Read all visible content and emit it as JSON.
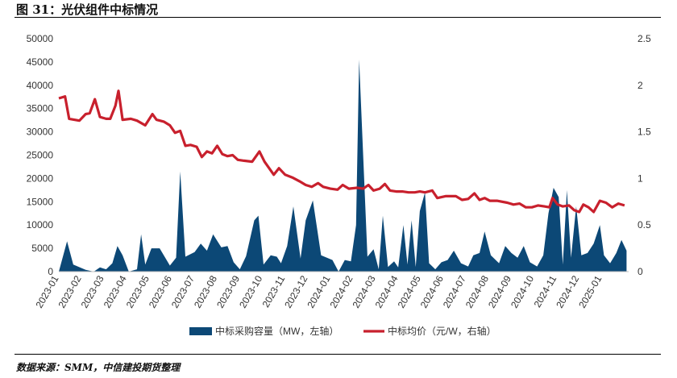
{
  "figure": {
    "title": "图 31：光伏组件中标情况",
    "source": "数据来源：SMM，中信建投期货整理"
  },
  "chart_data": {
    "type": "area+line",
    "title": "",
    "legend_position": "bottom",
    "grid": false,
    "x_ticks": [
      "2023-01",
      "2023-02",
      "2023-03",
      "2023-04",
      "2023-05",
      "2023-06",
      "2023-07",
      "2023-08",
      "2023-09",
      "2023-10",
      "2023-11",
      "2023-12",
      "2024-01",
      "2024-02",
      "2024-03",
      "2024-04",
      "2024-05",
      "2024-06",
      "2024-07",
      "2024-08",
      "2024-09",
      "2024-10",
      "2024-11",
      "2024-12",
      "2025-01"
    ],
    "y_left": {
      "ticks": [
        0,
        5000,
        10000,
        15000,
        20000,
        25000,
        30000,
        35000,
        40000,
        45000,
        50000
      ],
      "lim": [
        0,
        50000
      ]
    },
    "y_right": {
      "ticks": [
        0,
        0.5,
        1,
        1.5,
        2,
        2.5
      ],
      "lim": [
        0,
        2.5
      ]
    },
    "series": [
      {
        "name": "中标采购容量（MW，左轴）",
        "type": "area",
        "axis": "left",
        "color": "#0c4876",
        "points": [
          [
            0,
            0
          ],
          [
            0.4,
            6500
          ],
          [
            0.7,
            1500
          ],
          [
            1.3,
            400
          ],
          [
            1.7,
            0
          ],
          [
            2.0,
            900
          ],
          [
            2.3,
            500
          ],
          [
            2.6,
            1800
          ],
          [
            2.85,
            5500
          ],
          [
            3.1,
            3500
          ],
          [
            3.4,
            0
          ],
          [
            3.8,
            500
          ],
          [
            4.0,
            8000
          ],
          [
            4.2,
            1500
          ],
          [
            4.5,
            5000
          ],
          [
            4.9,
            5000
          ],
          [
            5.4,
            1300
          ],
          [
            5.7,
            3000
          ],
          [
            5.9,
            21500
          ],
          [
            6.15,
            3200
          ],
          [
            6.6,
            4200
          ],
          [
            6.9,
            6000
          ],
          [
            7.2,
            4500
          ],
          [
            7.5,
            8000
          ],
          [
            7.9,
            5200
          ],
          [
            8.2,
            5500
          ],
          [
            8.5,
            2000
          ],
          [
            8.8,
            500
          ],
          [
            9.1,
            3300
          ],
          [
            9.5,
            11000
          ],
          [
            9.7,
            12000
          ],
          [
            9.95,
            1500
          ],
          [
            10.3,
            3500
          ],
          [
            10.6,
            3200
          ],
          [
            10.8,
            1800
          ],
          [
            11.1,
            5500
          ],
          [
            11.4,
            14000
          ],
          [
            11.75,
            2800
          ],
          [
            12.0,
            11000
          ],
          [
            12.35,
            15300
          ],
          [
            12.75,
            3500
          ],
          [
            13.3,
            2500
          ],
          [
            13.6,
            0
          ],
          [
            13.9,
            2500
          ],
          [
            14.2,
            2200
          ],
          [
            14.45,
            10000
          ],
          [
            14.6,
            45500
          ],
          [
            15.0,
            3200
          ],
          [
            15.3,
            4800
          ],
          [
            15.55,
            500
          ],
          [
            15.75,
            12000
          ],
          [
            16.0,
            1000
          ],
          [
            16.3,
            2200
          ],
          [
            16.5,
            900
          ],
          [
            16.75,
            10000
          ],
          [
            16.95,
            1500
          ],
          [
            17.15,
            11000
          ],
          [
            17.35,
            1000
          ],
          [
            17.55,
            13000
          ],
          [
            17.8,
            17000
          ],
          [
            18.0,
            1800
          ],
          [
            18.3,
            500
          ],
          [
            18.6,
            2000
          ],
          [
            18.9,
            2500
          ],
          [
            19.2,
            4500
          ],
          [
            19.55,
            1800
          ],
          [
            19.9,
            1100
          ],
          [
            20.15,
            3500
          ],
          [
            20.45,
            4000
          ],
          [
            20.7,
            8600
          ],
          [
            21.0,
            3500
          ],
          [
            21.4,
            1800
          ],
          [
            21.7,
            5500
          ],
          [
            22.0,
            4000
          ],
          [
            22.3,
            3000
          ],
          [
            22.6,
            5500
          ],
          [
            22.9,
            2000
          ],
          [
            23.25,
            1100
          ],
          [
            23.55,
            3500
          ],
          [
            23.8,
            12500
          ],
          [
            24.05,
            18000
          ],
          [
            24.3,
            16000
          ],
          [
            24.5,
            1500
          ],
          [
            24.7,
            17500
          ],
          [
            24.9,
            3000
          ],
          [
            25.15,
            14000
          ],
          [
            25.4,
            3500
          ],
          [
            25.7,
            4000
          ],
          [
            26.0,
            6000
          ],
          [
            26.3,
            10000
          ],
          [
            26.5,
            3500
          ],
          [
            26.8,
            1800
          ],
          [
            27.1,
            4000
          ],
          [
            27.35,
            6800
          ],
          [
            27.6,
            4500
          ],
          [
            27.6,
            0
          ]
        ]
      },
      {
        "name": "中标均价（元/W，右轴）",
        "type": "line",
        "axis": "right",
        "color": "#c8202d",
        "points": [
          [
            0,
            1.86
          ],
          [
            0.3,
            1.88
          ],
          [
            0.5,
            1.64
          ],
          [
            1.0,
            1.62
          ],
          [
            1.3,
            1.69
          ],
          [
            1.5,
            1.7
          ],
          [
            1.75,
            1.85
          ],
          [
            2.0,
            1.66
          ],
          [
            2.3,
            1.64
          ],
          [
            2.5,
            1.64
          ],
          [
            2.75,
            1.78
          ],
          [
            2.9,
            1.94
          ],
          [
            3.1,
            1.63
          ],
          [
            3.5,
            1.64
          ],
          [
            3.8,
            1.62
          ],
          [
            4.2,
            1.57
          ],
          [
            4.55,
            1.69
          ],
          [
            4.75,
            1.63
          ],
          [
            5.1,
            1.61
          ],
          [
            5.4,
            1.57
          ],
          [
            5.65,
            1.49
          ],
          [
            5.9,
            1.51
          ],
          [
            6.15,
            1.35
          ],
          [
            6.4,
            1.36
          ],
          [
            6.7,
            1.34
          ],
          [
            6.95,
            1.23
          ],
          [
            7.2,
            1.29
          ],
          [
            7.45,
            1.27
          ],
          [
            7.7,
            1.35
          ],
          [
            7.95,
            1.26
          ],
          [
            8.2,
            1.24
          ],
          [
            8.45,
            1.25
          ],
          [
            8.7,
            1.2
          ],
          [
            9.0,
            1.19
          ],
          [
            9.4,
            1.18
          ],
          [
            9.75,
            1.29
          ],
          [
            10.0,
            1.18
          ],
          [
            10.45,
            1.04
          ],
          [
            10.7,
            1.11
          ],
          [
            11.0,
            1.04
          ],
          [
            11.35,
            1.01
          ],
          [
            11.7,
            0.97
          ],
          [
            12.0,
            0.93
          ],
          [
            12.3,
            0.91
          ],
          [
            12.6,
            0.95
          ],
          [
            12.85,
            0.91
          ],
          [
            13.2,
            0.89
          ],
          [
            13.55,
            0.88
          ],
          [
            13.8,
            0.93
          ],
          [
            14.1,
            0.89
          ],
          [
            14.5,
            0.9
          ],
          [
            14.8,
            0.89
          ],
          [
            15.05,
            0.93
          ],
          [
            15.3,
            0.87
          ],
          [
            15.6,
            0.89
          ],
          [
            15.85,
            0.94
          ],
          [
            16.1,
            0.87
          ],
          [
            16.4,
            0.86
          ],
          [
            16.7,
            0.86
          ],
          [
            17.0,
            0.85
          ],
          [
            17.3,
            0.85
          ],
          [
            17.55,
            0.86
          ],
          [
            17.8,
            0.85
          ],
          [
            18.15,
            0.87
          ],
          [
            18.4,
            0.79
          ],
          [
            18.8,
            0.81
          ],
          [
            19.3,
            0.81
          ],
          [
            19.6,
            0.77
          ],
          [
            19.9,
            0.78
          ],
          [
            20.2,
            0.84
          ],
          [
            20.45,
            0.77
          ],
          [
            20.7,
            0.79
          ],
          [
            20.95,
            0.76
          ],
          [
            21.3,
            0.76
          ],
          [
            21.8,
            0.74
          ],
          [
            22.1,
            0.72
          ],
          [
            22.4,
            0.73
          ],
          [
            22.7,
            0.69
          ],
          [
            23.0,
            0.69
          ],
          [
            23.3,
            0.71
          ],
          [
            23.6,
            0.7
          ],
          [
            23.85,
            0.69
          ],
          [
            24.0,
            0.79
          ],
          [
            24.25,
            0.72
          ],
          [
            24.5,
            0.7
          ],
          [
            24.8,
            0.71
          ],
          [
            25.05,
            0.66
          ],
          [
            25.3,
            0.64
          ],
          [
            25.5,
            0.72
          ],
          [
            25.75,
            0.69
          ],
          [
            26.0,
            0.64
          ],
          [
            26.3,
            0.76
          ],
          [
            26.6,
            0.74
          ],
          [
            26.9,
            0.69
          ],
          [
            27.2,
            0.73
          ],
          [
            27.5,
            0.71
          ]
        ]
      }
    ]
  }
}
